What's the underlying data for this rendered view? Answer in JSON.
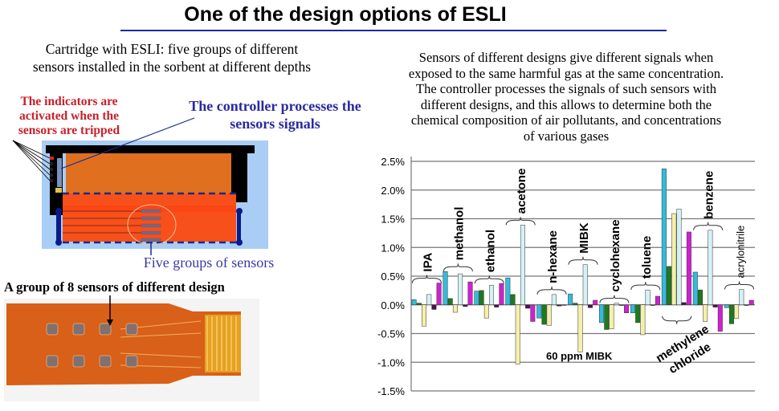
{
  "title": "One of the design options of  ESLI",
  "left_caption": [
    "Cartridge with ESLI: five groups of different",
    "sensors installed in the sorbent at different depths"
  ],
  "diagram": {
    "indicators_note": "The indicators are activated when the sensors are tripped",
    "controller_note": "The controller processes the sensors signals",
    "sensors_note": "Five groups of sensors",
    "group_note": "A group of 8 sensors of different design"
  },
  "right_caption": [
    "Sensors of different designs give different signals when",
    "exposed to the same harmful gas at the same concentration.",
    "The controller processes the signals of such sensors with",
    "different designs, and this allows to determine both the",
    "chemical composition of air pollutants, and concentrations",
    "of various gases"
  ],
  "chart_data": {
    "type": "bar",
    "categories": [
      "IPA",
      "methanol",
      "ethanol",
      "acetone",
      "n-hexane",
      "MIBK",
      "cyclohexane",
      "toluene",
      "methylene chloride",
      "benzene",
      "acrylonitrile"
    ],
    "series": [
      {
        "color": "#33bbdd",
        "values": [
          0.09,
          0.58,
          0.24,
          0.47,
          -0.23,
          0.19,
          -0.31,
          -0.14,
          2.37,
          0.57,
          -0.05
        ]
      },
      {
        "color": "#1d7a1d",
        "values": [
          0.03,
          0.11,
          0.25,
          0.18,
          -0.34,
          0.03,
          -0.43,
          -0.31,
          0.67,
          0.26,
          -0.33
        ]
      },
      {
        "color": "#f5f0a8",
        "values": [
          -0.37,
          -0.13,
          -0.23,
          -1.03,
          -0.36,
          -0.82,
          -0.42,
          -0.52,
          1.59,
          -0.29,
          -0.24
        ]
      },
      {
        "color": "#d4f2f6",
        "values": [
          0.18,
          0.54,
          0.34,
          1.39,
          0.18,
          0.7,
          0.03,
          0.26,
          1.67,
          1.3,
          0.27
        ]
      },
      {
        "color": "#4a1050",
        "values": [
          -0.08,
          -0.03,
          -0.04,
          -0.06,
          -0.02,
          -0.05,
          -0.01,
          0,
          0.04,
          -0.04,
          0
        ]
      },
      {
        "color": "#d020d0",
        "values": [
          0.38,
          0.4,
          0.37,
          -0.29,
          0,
          0.08,
          -0.14,
          0.15,
          1.27,
          -0.46,
          0.08
        ]
      }
    ],
    "ylim": [
      -1.5,
      2.5
    ],
    "yticks": [
      "2.5%",
      "2.0%",
      "1.5%",
      "1.0%",
      "0.5%",
      "0.0%",
      "-0.5%",
      "-1.0%",
      "-1.5%"
    ],
    "grid": true,
    "annotation": "60 ppm MIBK"
  }
}
